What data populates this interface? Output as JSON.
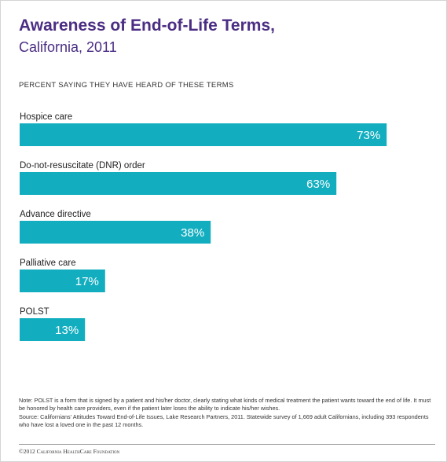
{
  "colors": {
    "title": "#4b2d83",
    "bar": "#12aebf",
    "value_text": "#ffffff"
  },
  "chart_data": {
    "type": "bar",
    "orientation": "horizontal",
    "title": "Awareness of End-of-Life Terms,",
    "subtitle": "California, 2011",
    "caption": "PERCENT SAYING THEY HAVE HEARD OF THESE TERMS",
    "categories": [
      "Hospice care",
      "Do-not-resuscitate (DNR) order",
      "Advance directive",
      "Palliative care",
      "POLST"
    ],
    "values": [
      73,
      63,
      38,
      17,
      13
    ],
    "value_labels": [
      "73%",
      "63%",
      "38%",
      "17%",
      "13%"
    ],
    "unit": "%",
    "xlim": [
      0,
      100
    ],
    "grid": false,
    "legend": "none"
  },
  "notes": {
    "note": "Note: POLST is a form that is signed by a patient and his/her doctor, clearly stating what kinds of medical treatment the patient wants toward the end of life. It must be honored by health care providers, even if the patient later loses the ability to indicate his/her wishes.",
    "source": "Source: Californians' Attitudes Toward End-of-Life Issues, Lake Research Partners, 2011. Statewide survey of 1,669 adult Californians, including 393 respondents who have lost a loved one in the past 12 months."
  },
  "footer": {
    "copyright": "©2012 California HealthCare Foundation"
  }
}
